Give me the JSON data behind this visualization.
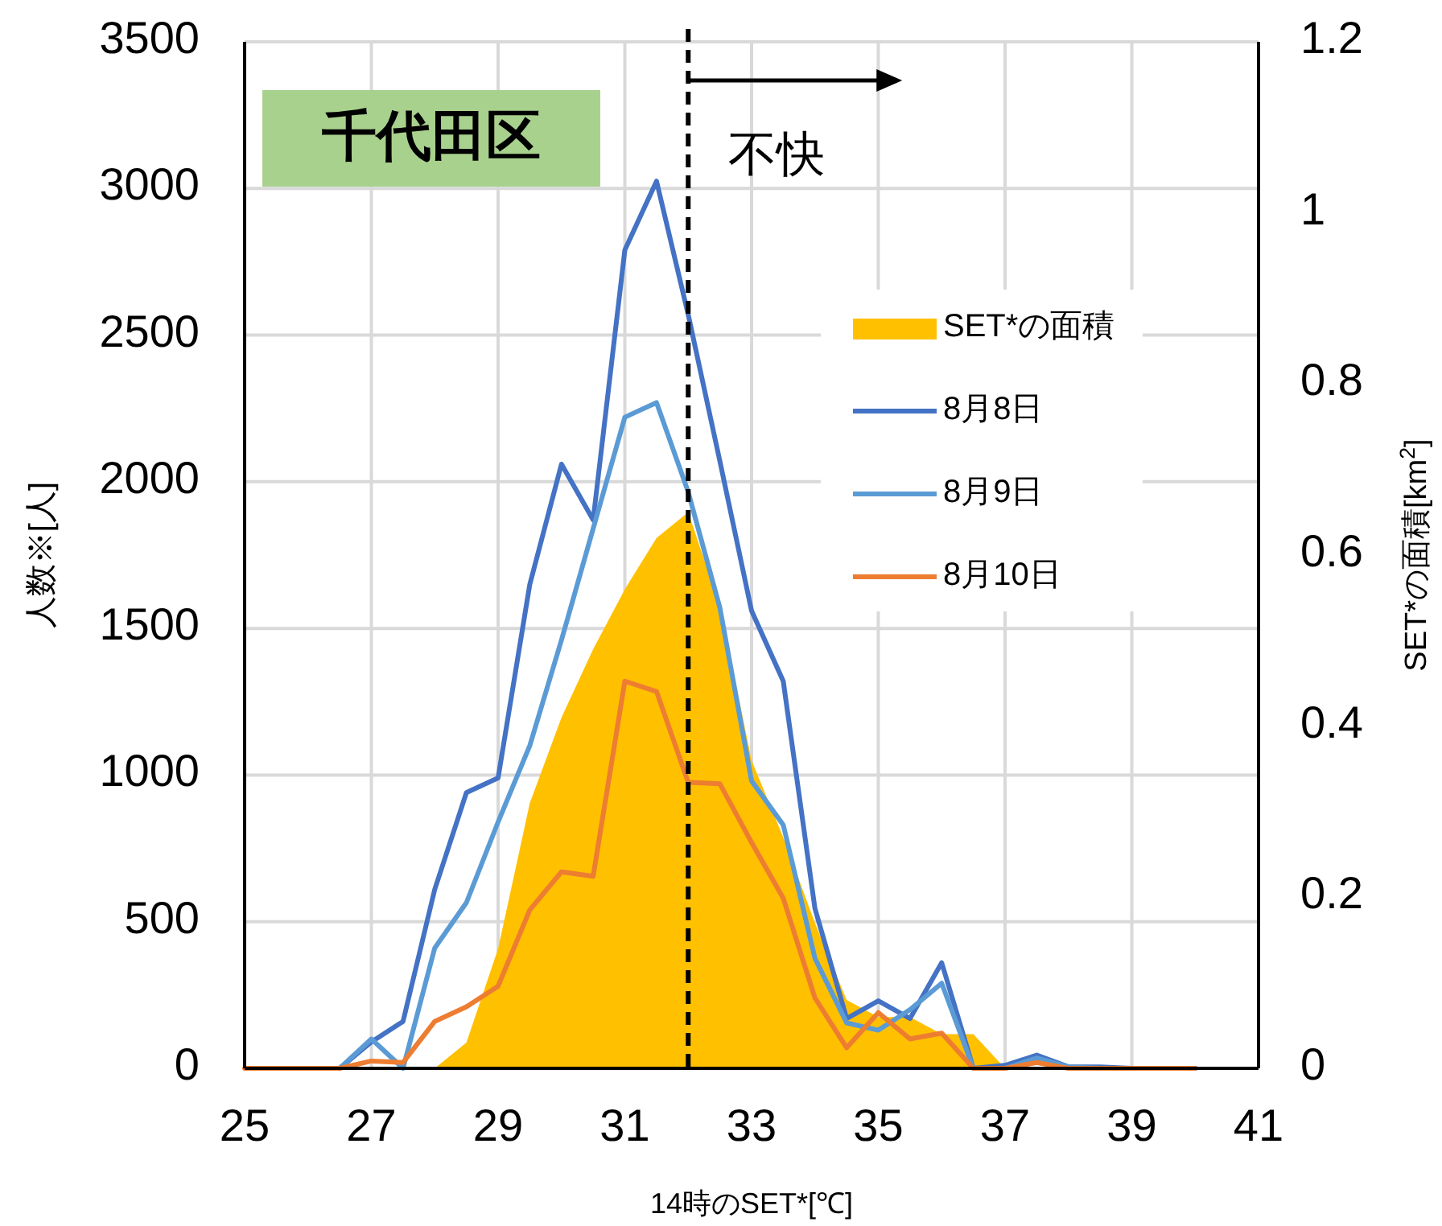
{
  "chart_data": {
    "type": "line",
    "title": "千代田区",
    "xlabel": "14時のSET*[℃]",
    "ylabel": "人数※[人]",
    "y2label": "SET*の面積[km$^{2}$]",
    "x": [
      25,
      25.5,
      26,
      26.5,
      27,
      27.5,
      28,
      28.5,
      29,
      29.5,
      30,
      30.5,
      31,
      31.5,
      32,
      32.5,
      33,
      33.5,
      34,
      34.5,
      35,
      35.5,
      36,
      36.5,
      37,
      37.5,
      38,
      38.5,
      39,
      39.5,
      40
    ],
    "series": [
      {
        "name": "SET*の面積",
        "type": "area",
        "axis": "y2",
        "color": "#ffc000",
        "values": [
          0,
          0,
          0,
          0,
          0,
          0,
          0,
          0.03,
          0.14,
          0.31,
          0.41,
          0.49,
          0.56,
          0.62,
          0.65,
          0.54,
          0.36,
          0.27,
          0.17,
          0.08,
          0.06,
          0.06,
          0.04,
          0.04,
          0,
          0,
          0,
          0,
          0,
          0,
          0
        ]
      },
      {
        "name": "8月8日",
        "color": "#4472c4",
        "values": [
          null,
          null,
          null,
          0,
          90,
          160,
          610,
          940,
          990,
          1650,
          2060,
          1870,
          2790,
          3025,
          2570,
          2070,
          1560,
          1320,
          545,
          170,
          230,
          170,
          360,
          0,
          10,
          45,
          5,
          5,
          0,
          0,
          0
        ]
      },
      {
        "name": "8月9日",
        "color": "#5b9bd5",
        "values": [
          null,
          null,
          null,
          0,
          100,
          0,
          410,
          565,
          840,
          1100,
          1460,
          1840,
          2220,
          2270,
          1965,
          1570,
          980,
          830,
          375,
          155,
          130,
          200,
          290,
          0,
          0,
          35,
          5,
          0,
          0,
          0,
          0
        ]
      },
      {
        "name": "8月10日",
        "color": "#ed7d31",
        "values": [
          0,
          0,
          0,
          0,
          25,
          20,
          160,
          210,
          280,
          540,
          670,
          655,
          1320,
          1285,
          975,
          970,
          770,
          580,
          240,
          70,
          190,
          100,
          120,
          0,
          0,
          20,
          0,
          0,
          0,
          0,
          0
        ]
      }
    ],
    "xlim": [
      25,
      41
    ],
    "xticks": [
      25,
      27,
      29,
      31,
      33,
      35,
      37,
      39,
      41
    ],
    "ylim": [
      0,
      3500
    ],
    "yticks": [
      0,
      500,
      1000,
      1500,
      2000,
      2500,
      3000,
      3500
    ],
    "y2lim": [
      0,
      1.2
    ],
    "y2ticks": [
      0,
      0.2,
      0.4,
      0.6,
      0.8,
      1,
      1.2
    ],
    "grid": true,
    "legend": "right",
    "ref_lines": [
      {
        "axis": "x",
        "value": 32,
        "color": "#000000",
        "line_style": "dashed"
      }
    ],
    "annotations": [
      "不快"
    ]
  }
}
